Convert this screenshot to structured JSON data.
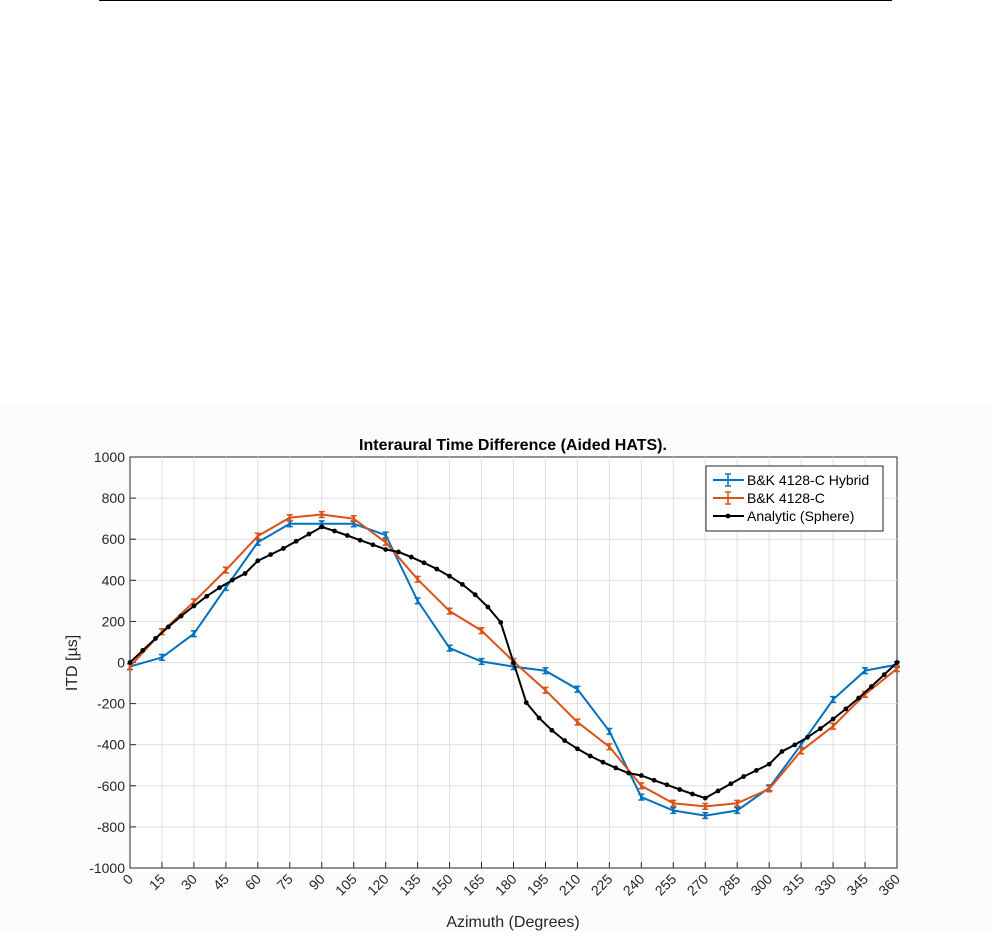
{
  "chart_data": {
    "type": "line",
    "title": "Interaural Time Difference (Aided HATS).",
    "xlabel": "Azimuth (Degrees)",
    "ylabel": "ITD [µs]",
    "xlim": [
      0,
      360
    ],
    "ylim": [
      -1000,
      1000
    ],
    "xticks": [
      0,
      15,
      30,
      45,
      60,
      75,
      90,
      105,
      120,
      135,
      150,
      165,
      180,
      195,
      210,
      225,
      240,
      255,
      270,
      285,
      300,
      315,
      330,
      345,
      360
    ],
    "yticks": [
      -1000,
      -800,
      -600,
      -400,
      -200,
      0,
      200,
      400,
      600,
      800,
      1000
    ],
    "grid": true,
    "legend_position": "top-right",
    "series": [
      {
        "name": "B&K 4128-C Hybrid",
        "color": "#0072bd",
        "marker": "errorbar",
        "x": [
          0,
          15,
          30,
          45,
          60,
          75,
          90,
          105,
          120,
          135,
          150,
          165,
          180,
          195,
          210,
          225,
          240,
          255,
          270,
          285,
          300,
          315,
          330,
          345,
          360
        ],
        "y": [
          -20,
          25,
          140,
          365,
          585,
          675,
          675,
          675,
          620,
          300,
          70,
          5,
          -20,
          -40,
          -130,
          -335,
          -655,
          -720,
          -745,
          -720,
          -610,
          -400,
          -180,
          -40,
          -10
        ],
        "err": [
          14,
          14,
          14,
          14,
          14,
          14,
          14,
          14,
          14,
          14,
          14,
          14,
          14,
          14,
          14,
          14,
          14,
          14,
          14,
          14,
          14,
          14,
          14,
          14,
          14
        ]
      },
      {
        "name": "B&K 4128-C",
        "color": "#d95319",
        "marker": "errorbar",
        "x": [
          0,
          15,
          30,
          45,
          60,
          75,
          90,
          105,
          120,
          135,
          150,
          165,
          180,
          195,
          210,
          225,
          240,
          255,
          270,
          285,
          300,
          315,
          330,
          345,
          360
        ],
        "y": [
          -20,
          150,
          295,
          450,
          615,
          705,
          720,
          700,
          585,
          405,
          250,
          155,
          5,
          -135,
          -290,
          -410,
          -600,
          -685,
          -700,
          -685,
          -615,
          -430,
          -310,
          -155,
          -30
        ],
        "err": [
          14,
          14,
          14,
          14,
          14,
          14,
          14,
          14,
          14,
          14,
          14,
          14,
          14,
          14,
          14,
          14,
          14,
          14,
          14,
          14,
          14,
          14,
          14,
          14,
          14
        ]
      },
      {
        "name": "Analytic (Sphere)",
        "color": "#000000",
        "marker": "dot",
        "x": [
          0,
          6,
          12,
          18,
          24,
          30,
          36,
          42,
          48,
          54,
          60,
          66,
          72,
          78,
          84,
          90,
          96,
          102,
          108,
          114,
          120,
          126,
          132,
          138,
          144,
          150,
          156,
          162,
          168,
          174,
          180,
          186,
          192,
          198,
          204,
          210,
          216,
          222,
          228,
          234,
          240,
          246,
          252,
          258,
          264,
          270,
          276,
          282,
          288,
          294,
          300,
          306,
          312,
          318,
          324,
          330,
          336,
          342,
          348,
          354,
          360
        ],
        "y": [
          0,
          59,
          117,
          173,
          226,
          275,
          322,
          364,
          401,
          433,
          495,
          525,
          555,
          590,
          625,
          660,
          640,
          618,
          595,
          573,
          550,
          538,
          513,
          485,
          455,
          420,
          380,
          330,
          270,
          195,
          0,
          -195,
          -270,
          -330,
          -380,
          -420,
          -455,
          -485,
          -513,
          -538,
          -550,
          -573,
          -595,
          -618,
          -640,
          -660,
          -625,
          -590,
          -555,
          -525,
          -495,
          -433,
          -401,
          -364,
          -322,
          -275,
          -226,
          -173,
          -117,
          -59,
          0
        ]
      }
    ]
  }
}
